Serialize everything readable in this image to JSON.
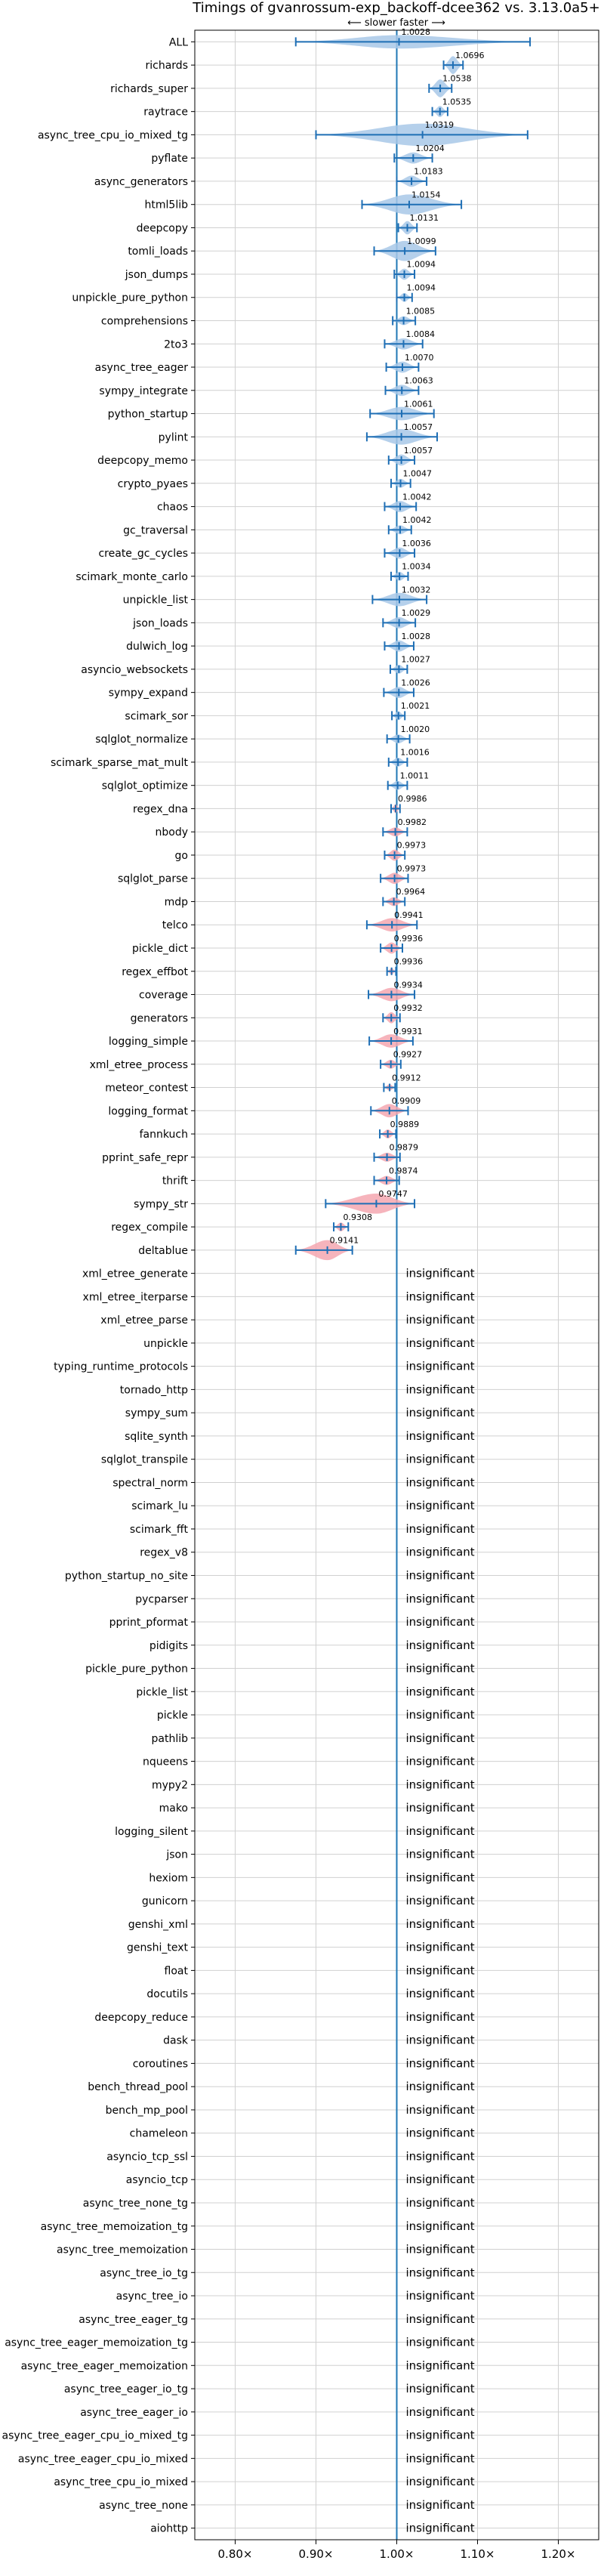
{
  "chart_data": {
    "type": "violin",
    "title": "Timings of gvanrossum-exp_backoff-dcee362 vs. 3.13.0a5+",
    "axis_annotation": "⟵ slower    faster ⟶",
    "x_tick_labels": [
      "0.80×",
      "0.90×",
      "1.00×",
      "1.10×",
      "1.20×"
    ],
    "x_ticks": [
      0.8,
      0.9,
      1.0,
      1.1,
      1.2
    ],
    "xlim": [
      0.75,
      1.25
    ],
    "reference_line": 1.0,
    "grid": true,
    "colors": {
      "faster": "#a8c8e8",
      "slower": "#f4a7b0",
      "errorbar": "#1f6fb5",
      "refline": "#1f77b4",
      "grid": "#d0d0d0"
    },
    "insignificant_text": "insignificant",
    "benchmarks": [
      {
        "name": "ALL",
        "value": 1.0028,
        "label": "1.0028",
        "lo": 0.875,
        "hi": 1.165,
        "width": 0.6,
        "sig": true
      },
      {
        "name": "richards",
        "value": 1.0696,
        "label": "1.0696",
        "lo": 1.058,
        "hi": 1.082,
        "width": 0.8,
        "sig": true
      },
      {
        "name": "richards_super",
        "value": 1.0538,
        "label": "1.0538",
        "lo": 1.04,
        "hi": 1.068,
        "width": 0.8,
        "sig": true
      },
      {
        "name": "raytrace",
        "value": 1.0535,
        "label": "1.0535",
        "lo": 1.044,
        "hi": 1.063,
        "width": 0.5,
        "sig": true
      },
      {
        "name": "async_tree_cpu_io_mixed_tg",
        "value": 1.0319,
        "label": "1.0319",
        "lo": 0.9,
        "hi": 1.162,
        "width": 1.0,
        "sig": true
      },
      {
        "name": "pyflate",
        "value": 1.0204,
        "label": "1.0204",
        "lo": 0.997,
        "hi": 1.044,
        "width": 0.5,
        "sig": true
      },
      {
        "name": "async_generators",
        "value": 1.0183,
        "label": "1.0183",
        "lo": 1.0,
        "hi": 1.037,
        "width": 0.5,
        "sig": true
      },
      {
        "name": "html5lib",
        "value": 1.0154,
        "label": "1.0154",
        "lo": 0.957,
        "hi": 1.08,
        "width": 0.9,
        "sig": true
      },
      {
        "name": "deepcopy",
        "value": 1.0131,
        "label": "1.0131",
        "lo": 1.002,
        "hi": 1.025,
        "width": 0.6,
        "sig": true
      },
      {
        "name": "tomli_loads",
        "value": 1.0099,
        "label": "1.0099",
        "lo": 0.972,
        "hi": 1.048,
        "width": 0.9,
        "sig": true
      },
      {
        "name": "json_dumps",
        "value": 1.0094,
        "label": "1.0094",
        "lo": 0.997,
        "hi": 1.022,
        "width": 0.5,
        "sig": true
      },
      {
        "name": "unpickle_pure_python",
        "value": 1.0094,
        "label": "1.0094",
        "lo": 1.0,
        "hi": 1.019,
        "width": 0.4,
        "sig": true
      },
      {
        "name": "comprehensions",
        "value": 1.0085,
        "label": "1.0085",
        "lo": 0.995,
        "hi": 1.023,
        "width": 0.4,
        "sig": true
      },
      {
        "name": "2to3",
        "value": 1.0084,
        "label": "1.0084",
        "lo": 0.985,
        "hi": 1.032,
        "width": 0.5,
        "sig": true
      },
      {
        "name": "async_tree_eager",
        "value": 1.007,
        "label": "1.0070",
        "lo": 0.987,
        "hi": 1.027,
        "width": 0.5,
        "sig": true
      },
      {
        "name": "sympy_integrate",
        "value": 1.0063,
        "label": "1.0063",
        "lo": 0.986,
        "hi": 1.027,
        "width": 0.5,
        "sig": true
      },
      {
        "name": "python_startup",
        "value": 1.0061,
        "label": "1.0061",
        "lo": 0.967,
        "hi": 1.046,
        "width": 0.6,
        "sig": true
      },
      {
        "name": "pylint",
        "value": 1.0057,
        "label": "1.0057",
        "lo": 0.963,
        "hi": 1.05,
        "width": 0.7,
        "sig": true
      },
      {
        "name": "deepcopy_memo",
        "value": 1.0057,
        "label": "1.0057",
        "lo": 0.99,
        "hi": 1.022,
        "width": 0.5,
        "sig": true
      },
      {
        "name": "crypto_pyaes",
        "value": 1.0047,
        "label": "1.0047",
        "lo": 0.993,
        "hi": 1.017,
        "width": 0.4,
        "sig": true
      },
      {
        "name": "chaos",
        "value": 1.0042,
        "label": "1.0042",
        "lo": 0.985,
        "hi": 1.024,
        "width": 0.5,
        "sig": true
      },
      {
        "name": "gc_traversal",
        "value": 1.0042,
        "label": "1.0042",
        "lo": 0.99,
        "hi": 1.018,
        "width": 0.4,
        "sig": true
      },
      {
        "name": "create_gc_cycles",
        "value": 1.0036,
        "label": "1.0036",
        "lo": 0.985,
        "hi": 1.022,
        "width": 0.5,
        "sig": true
      },
      {
        "name": "scimark_monte_carlo",
        "value": 1.0034,
        "label": "1.0034",
        "lo": 0.993,
        "hi": 1.014,
        "width": 0.4,
        "sig": true
      },
      {
        "name": "unpickle_list",
        "value": 1.0032,
        "label": "1.0032",
        "lo": 0.97,
        "hi": 1.037,
        "width": 0.6,
        "sig": true
      },
      {
        "name": "json_loads",
        "value": 1.0029,
        "label": "1.0029",
        "lo": 0.983,
        "hi": 1.023,
        "width": 0.5,
        "sig": true
      },
      {
        "name": "dulwich_log",
        "value": 1.0028,
        "label": "1.0028",
        "lo": 0.985,
        "hi": 1.021,
        "width": 0.5,
        "sig": true
      },
      {
        "name": "asyncio_websockets",
        "value": 1.0027,
        "label": "1.0027",
        "lo": 0.992,
        "hi": 1.013,
        "width": 0.4,
        "sig": true
      },
      {
        "name": "sympy_expand",
        "value": 1.0026,
        "label": "1.0026",
        "lo": 0.984,
        "hi": 1.021,
        "width": 0.5,
        "sig": true
      },
      {
        "name": "scimark_sor",
        "value": 1.0021,
        "label": "1.0021",
        "lo": 0.994,
        "hi": 1.01,
        "width": 0.4,
        "sig": true
      },
      {
        "name": "sqlglot_normalize",
        "value": 1.002,
        "label": "1.0020",
        "lo": 0.988,
        "hi": 1.016,
        "width": 0.4,
        "sig": true
      },
      {
        "name": "scimark_sparse_mat_mult",
        "value": 1.0016,
        "label": "1.0016",
        "lo": 0.99,
        "hi": 1.013,
        "width": 0.4,
        "sig": true
      },
      {
        "name": "sqlglot_optimize",
        "value": 1.0011,
        "label": "1.0011",
        "lo": 0.989,
        "hi": 1.013,
        "width": 0.4,
        "sig": true
      },
      {
        "name": "regex_dna",
        "value": 0.9986,
        "label": "0.9986",
        "lo": 0.993,
        "hi": 1.004,
        "width": 0.4,
        "sig": true
      },
      {
        "name": "nbody",
        "value": 0.9982,
        "label": "0.9982",
        "lo": 0.983,
        "hi": 1.013,
        "width": 0.4,
        "sig": true
      },
      {
        "name": "go",
        "value": 0.9973,
        "label": "0.9973",
        "lo": 0.985,
        "hi": 1.01,
        "width": 0.5,
        "sig": true
      },
      {
        "name": "sqlglot_parse",
        "value": 0.9973,
        "label": "0.9973",
        "lo": 0.98,
        "hi": 1.014,
        "width": 0.5,
        "sig": true
      },
      {
        "name": "mdp",
        "value": 0.9964,
        "label": "0.9964",
        "lo": 0.983,
        "hi": 1.01,
        "width": 0.4,
        "sig": true
      },
      {
        "name": "telco",
        "value": 0.9941,
        "label": "0.9941",
        "lo": 0.963,
        "hi": 1.025,
        "width": 0.6,
        "sig": true
      },
      {
        "name": "pickle_dict",
        "value": 0.9936,
        "label": "0.9936",
        "lo": 0.98,
        "hi": 1.007,
        "width": 0.5,
        "sig": true
      },
      {
        "name": "regex_effbot",
        "value": 0.9936,
        "label": "0.9936",
        "lo": 0.988,
        "hi": 0.999,
        "width": 0.3,
        "sig": true
      },
      {
        "name": "coverage",
        "value": 0.9934,
        "label": "0.9934",
        "lo": 0.965,
        "hi": 1.022,
        "width": 0.6,
        "sig": true
      },
      {
        "name": "generators",
        "value": 0.9932,
        "label": "0.9932",
        "lo": 0.983,
        "hi": 1.004,
        "width": 0.5,
        "sig": true
      },
      {
        "name": "logging_simple",
        "value": 0.9931,
        "label": "0.9931",
        "lo": 0.966,
        "hi": 1.02,
        "width": 0.6,
        "sig": true
      },
      {
        "name": "xml_etree_process",
        "value": 0.9927,
        "label": "0.9927",
        "lo": 0.98,
        "hi": 1.005,
        "width": 0.4,
        "sig": true
      },
      {
        "name": "meteor_contest",
        "value": 0.9912,
        "label": "0.9912",
        "lo": 0.984,
        "hi": 0.998,
        "width": 0.3,
        "sig": true
      },
      {
        "name": "logging_format",
        "value": 0.9909,
        "label": "0.9909",
        "lo": 0.968,
        "hi": 1.014,
        "width": 0.6,
        "sig": true
      },
      {
        "name": "fannkuch",
        "value": 0.9889,
        "label": "0.9889",
        "lo": 0.979,
        "hi": 0.999,
        "width": 0.4,
        "sig": true
      },
      {
        "name": "pprint_safe_repr",
        "value": 0.9879,
        "label": "0.9879",
        "lo": 0.972,
        "hi": 1.004,
        "width": 0.4,
        "sig": true
      },
      {
        "name": "thrift",
        "value": 0.9874,
        "label": "0.9874",
        "lo": 0.972,
        "hi": 1.003,
        "width": 0.4,
        "sig": true
      },
      {
        "name": "sympy_str",
        "value": 0.9747,
        "label": "0.9747",
        "lo": 0.912,
        "hi": 1.022,
        "width": 0.9,
        "sig": true
      },
      {
        "name": "regex_compile",
        "value": 0.9308,
        "label": "0.9308",
        "lo": 0.922,
        "hi": 0.94,
        "width": 0.4,
        "sig": true
      },
      {
        "name": "deltablue",
        "value": 0.9141,
        "label": "0.9141",
        "lo": 0.875,
        "hi": 0.945,
        "width": 0.9,
        "sig": true
      },
      {
        "name": "xml_etree_generate",
        "sig": false
      },
      {
        "name": "xml_etree_iterparse",
        "sig": false
      },
      {
        "name": "xml_etree_parse",
        "sig": false
      },
      {
        "name": "unpickle",
        "sig": false
      },
      {
        "name": "typing_runtime_protocols",
        "sig": false
      },
      {
        "name": "tornado_http",
        "sig": false
      },
      {
        "name": "sympy_sum",
        "sig": false
      },
      {
        "name": "sqlite_synth",
        "sig": false
      },
      {
        "name": "sqlglot_transpile",
        "sig": false
      },
      {
        "name": "spectral_norm",
        "sig": false
      },
      {
        "name": "scimark_lu",
        "sig": false
      },
      {
        "name": "scimark_fft",
        "sig": false
      },
      {
        "name": "regex_v8",
        "sig": false
      },
      {
        "name": "python_startup_no_site",
        "sig": false
      },
      {
        "name": "pycparser",
        "sig": false
      },
      {
        "name": "pprint_pformat",
        "sig": false
      },
      {
        "name": "pidigits",
        "sig": false
      },
      {
        "name": "pickle_pure_python",
        "sig": false
      },
      {
        "name": "pickle_list",
        "sig": false
      },
      {
        "name": "pickle",
        "sig": false
      },
      {
        "name": "pathlib",
        "sig": false
      },
      {
        "name": "nqueens",
        "sig": false
      },
      {
        "name": "mypy2",
        "sig": false
      },
      {
        "name": "mako",
        "sig": false
      },
      {
        "name": "logging_silent",
        "sig": false
      },
      {
        "name": "json",
        "sig": false
      },
      {
        "name": "hexiom",
        "sig": false
      },
      {
        "name": "gunicorn",
        "sig": false
      },
      {
        "name": "genshi_xml",
        "sig": false
      },
      {
        "name": "genshi_text",
        "sig": false
      },
      {
        "name": "float",
        "sig": false
      },
      {
        "name": "docutils",
        "sig": false
      },
      {
        "name": "deepcopy_reduce",
        "sig": false
      },
      {
        "name": "dask",
        "sig": false
      },
      {
        "name": "coroutines",
        "sig": false
      },
      {
        "name": "bench_thread_pool",
        "sig": false
      },
      {
        "name": "bench_mp_pool",
        "sig": false
      },
      {
        "name": "chameleon",
        "sig": false
      },
      {
        "name": "asyncio_tcp_ssl",
        "sig": false
      },
      {
        "name": "asyncio_tcp",
        "sig": false
      },
      {
        "name": "async_tree_none_tg",
        "sig": false
      },
      {
        "name": "async_tree_memoization_tg",
        "sig": false
      },
      {
        "name": "async_tree_memoization",
        "sig": false
      },
      {
        "name": "async_tree_io_tg",
        "sig": false
      },
      {
        "name": "async_tree_io",
        "sig": false
      },
      {
        "name": "async_tree_eager_tg",
        "sig": false
      },
      {
        "name": "async_tree_eager_memoization_tg",
        "sig": false
      },
      {
        "name": "async_tree_eager_memoization",
        "sig": false
      },
      {
        "name": "async_tree_eager_io_tg",
        "sig": false
      },
      {
        "name": "async_tree_eager_io",
        "sig": false
      },
      {
        "name": "async_tree_eager_cpu_io_mixed_tg",
        "sig": false
      },
      {
        "name": "async_tree_eager_cpu_io_mixed",
        "sig": false
      },
      {
        "name": "async_tree_cpu_io_mixed",
        "sig": false
      },
      {
        "name": "async_tree_none",
        "sig": false
      },
      {
        "name": "aiohttp",
        "sig": false
      }
    ]
  }
}
